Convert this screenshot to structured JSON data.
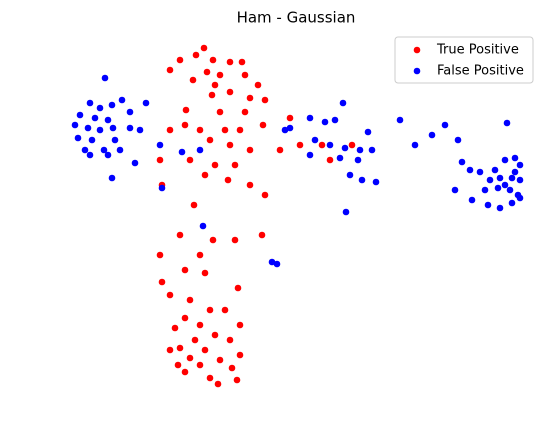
{
  "chart_data": {
    "type": "scatter",
    "title": "Ham - Gaussian",
    "xlim": [
      0,
      480
    ],
    "ylim": [
      0,
      350
    ],
    "legend": "upper right",
    "series": [
      {
        "name": "True Positive",
        "color": "#ff0000",
        "x": [
          154,
          146,
          163,
          130,
          180,
          192,
          120,
          157,
          170,
          195,
          143,
          165,
          208,
          180,
          162,
          215,
          200,
          136,
          170,
          195,
          135,
          150,
          175,
          190,
          213,
          240,
          120,
          160,
          180,
          200,
          230,
          250,
          110,
          140,
          165,
          185,
          155,
          178,
          200,
          215,
          112,
          144,
          280,
          302,
          272,
          130,
          163,
          185,
          110,
          150,
          135,
          155,
          112,
          188,
          120,
          140,
          160,
          175,
          135,
          150,
          190,
          125,
          165,
          145,
          180,
          130,
          155,
          190,
          140,
          170,
          128,
          150,
          182,
          135,
          160,
          187,
          168,
          120,
          212
        ],
        "y": [
          342,
          335,
          330,
          330,
          328,
          328,
          320,
          318,
          315,
          315,
          310,
          305,
          305,
          298,
          295,
          290,
          292,
          280,
          278,
          278,
          265,
          260,
          260,
          260,
          265,
          272,
          260,
          250,
          245,
          240,
          240,
          245,
          230,
          230,
          225,
          225,
          215,
          210,
          205,
          195,
          205,
          185,
          230,
          245,
          245,
          155,
          150,
          150,
          135,
          135,
          120,
          117,
          108,
          102,
          95,
          90,
          80,
          80,
          72,
          65,
          65,
          62,
          55,
          50,
          50,
          42,
          40,
          35,
          32,
          30,
          25,
          25,
          22,
          18,
          12,
          10,
          6,
          40,
          155
        ]
      },
      {
        "name": "False Positive",
        "color": "#0000ff",
        "x": [
          55,
          40,
          50,
          62,
          72,
          96,
          30,
          45,
          58,
          80,
          25,
          38,
          50,
          63,
          80,
          28,
          42,
          65,
          90,
          35,
          54,
          70,
          110,
          40,
          58,
          85,
          62,
          112,
          132,
          150,
          293,
          240,
          260,
          275,
          285,
          265,
          280,
          295,
          310,
          322,
          318,
          260,
          290,
          308,
          300,
          312,
          326,
          296,
          350,
          365,
          382,
          395,
          153,
          222,
          227,
          235,
          457,
          408,
          412,
          420,
          430,
          445,
          455,
          465,
          470,
          440,
          450,
          462,
          470,
          435,
          448,
          460,
          468,
          405,
          422,
          438,
          450,
          462,
          470,
          455,
          465
        ],
        "y": [
          312,
          287,
          282,
          285,
          290,
          287,
          275,
          272,
          270,
          278,
          265,
          262,
          260,
          262,
          262,
          252,
          250,
          250,
          260,
          240,
          240,
          240,
          245,
          235,
          235,
          227,
          212,
          202,
          238,
          240,
          287,
          262,
          272,
          268,
          270,
          250,
          245,
          242,
          240,
          240,
          258,
          235,
          232,
          230,
          215,
          210,
          208,
          178,
          270,
          245,
          255,
          265,
          164,
          128,
          126,
          260,
          267,
          250,
          228,
          220,
          218,
          220,
          230,
          232,
          225,
          210,
          212,
          212,
          210,
          200,
          202,
          200,
          195,
          200,
          190,
          185,
          182,
          187,
          192,
          205,
          218
        ]
      }
    ]
  }
}
